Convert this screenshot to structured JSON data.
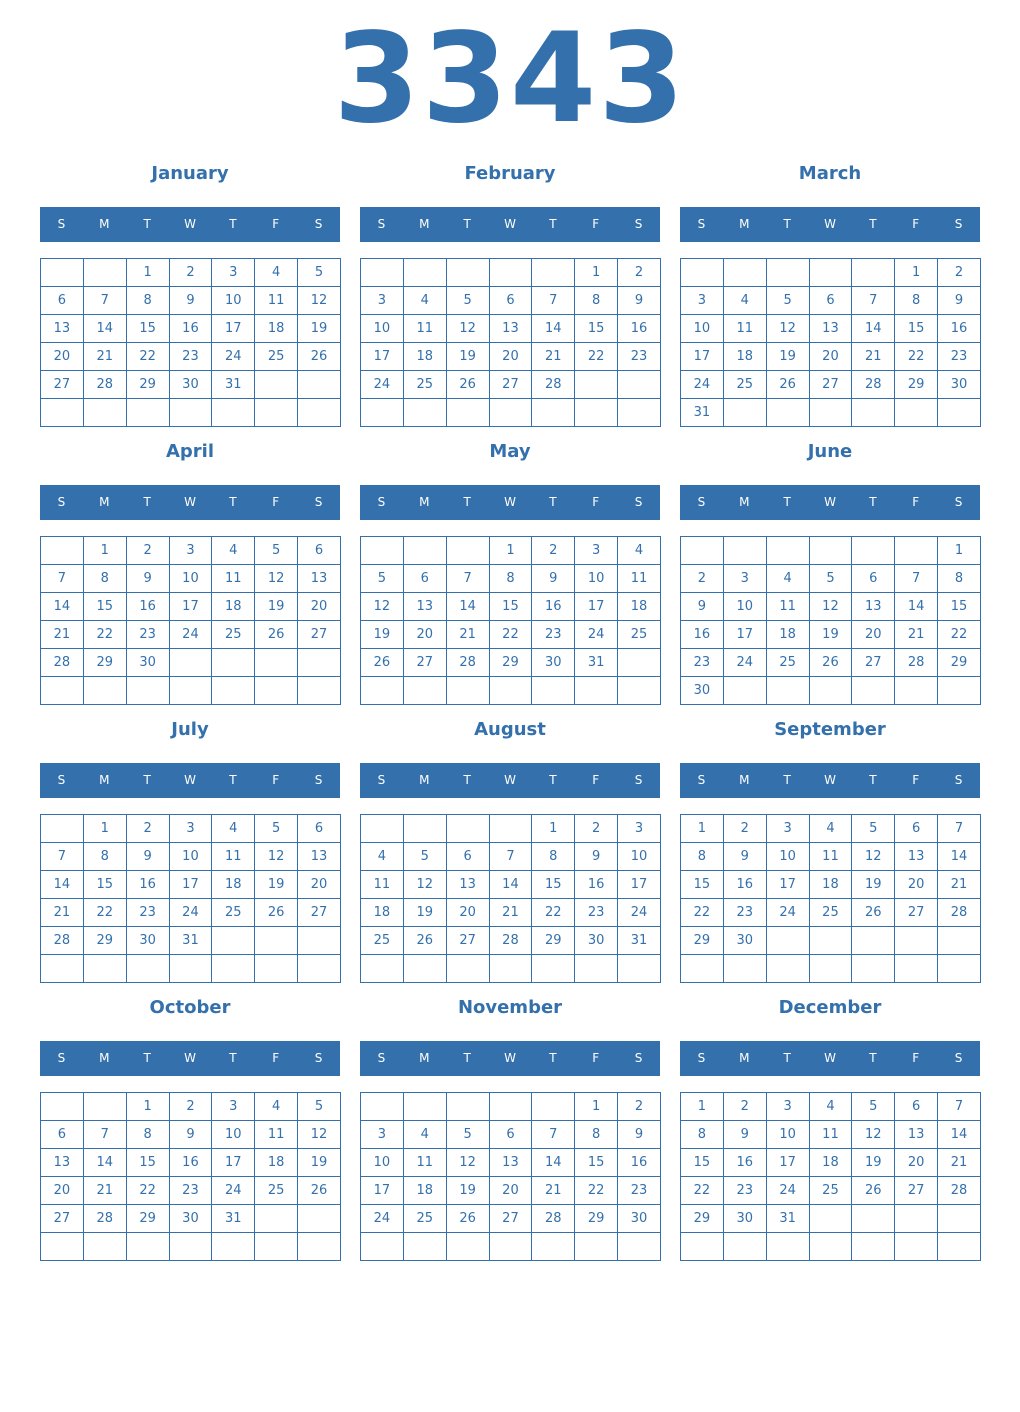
{
  "year": "3343",
  "colors": {
    "accent": "#3470ac",
    "header_text": "#ffffff"
  },
  "weekday_labels": [
    "S",
    "M",
    "T",
    "W",
    "T",
    "F",
    "S"
  ],
  "months": [
    {
      "name": "January",
      "first_weekday": 2,
      "days_in_month": 31
    },
    {
      "name": "February",
      "first_weekday": 5,
      "days_in_month": 28
    },
    {
      "name": "March",
      "first_weekday": 5,
      "days_in_month": 31
    },
    {
      "name": "April",
      "first_weekday": 1,
      "days_in_month": 30
    },
    {
      "name": "May",
      "first_weekday": 3,
      "days_in_month": 31
    },
    {
      "name": "June",
      "first_weekday": 6,
      "days_in_month": 30
    },
    {
      "name": "July",
      "first_weekday": 1,
      "days_in_month": 31
    },
    {
      "name": "August",
      "first_weekday": 4,
      "days_in_month": 31
    },
    {
      "name": "September",
      "first_weekday": 0,
      "days_in_month": 30
    },
    {
      "name": "October",
      "first_weekday": 2,
      "days_in_month": 31
    },
    {
      "name": "November",
      "first_weekday": 5,
      "days_in_month": 30
    },
    {
      "name": "December",
      "first_weekday": 0,
      "days_in_month": 31
    }
  ]
}
